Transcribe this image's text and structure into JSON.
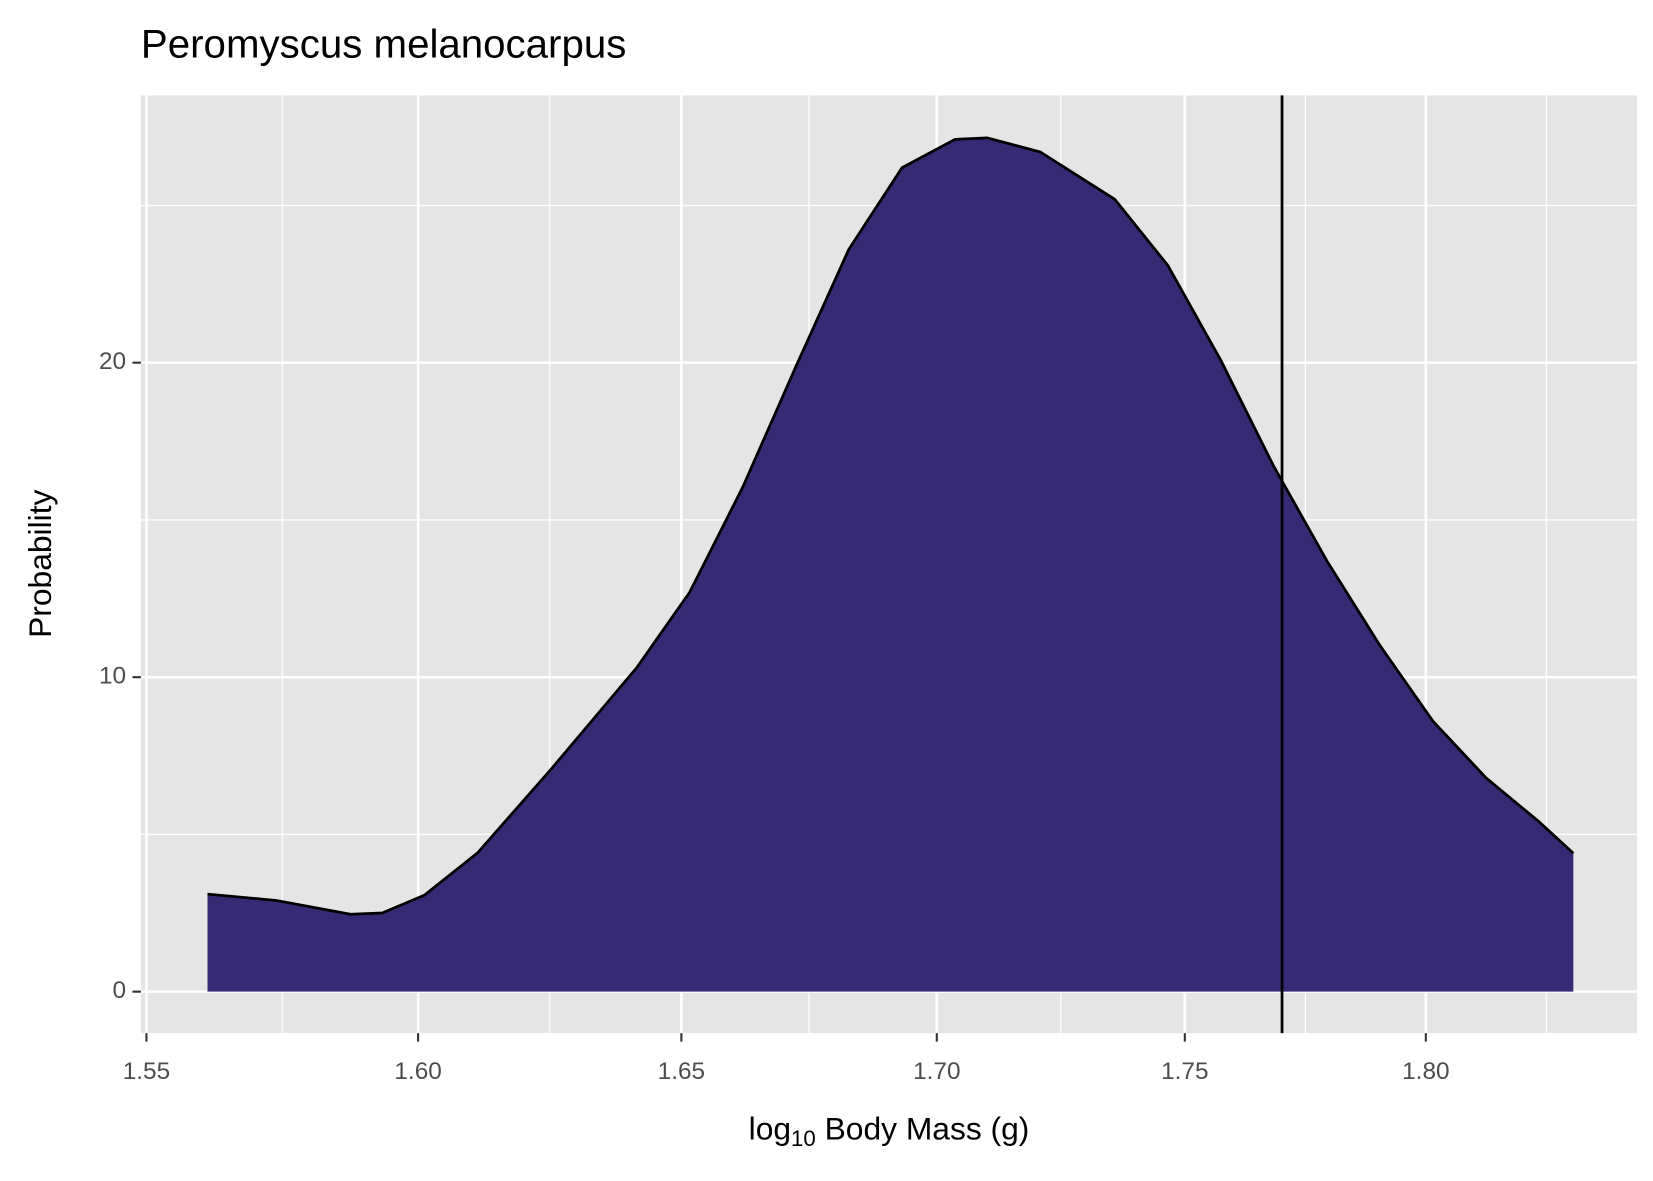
{
  "chart_data": {
    "type": "density",
    "title": "Peromyscus melanocarpus",
    "x_label": [
      "log",
      "10",
      " Body Mass (g)"
    ],
    "y_label": "Probability",
    "x": [
      1.5611,
      1.5737,
      1.5874,
      1.5933,
      1.6012,
      1.6112,
      1.6252,
      1.6414,
      1.6516,
      1.6619,
      1.6723,
      1.6826,
      1.6931,
      1.7036,
      1.71,
      1.7207,
      1.7357,
      1.7465,
      1.7573,
      1.7683,
      1.7793,
      1.7904,
      1.8015,
      1.8127,
      1.824,
      1.8313
    ],
    "values": [
      3.1,
      2.9,
      2.46,
      2.5,
      3.07,
      4.42,
      7.1,
      10.3,
      12.7,
      16.05,
      19.9,
      23.6,
      26.2,
      27.1,
      27.15,
      26.7,
      25.2,
      23.1,
      20.1,
      16.7,
      13.7,
      11.0,
      8.6,
      6.8,
      5.4,
      4.4
    ],
    "color": "#372a75",
    "reference_x": 1.77,
    "xlim": [
      1.549,
      1.845
    ],
    "xticks": [
      1.55,
      {
        "value": 1.6,
        "label": "1.60"
      },
      1.65,
      {
        "value": 1.7,
        "label": "1.70"
      },
      1.75,
      {
        "value": 1.8,
        "label": "1.80"
      }
    ],
    "x_log": true,
    "ylim": [
      -1.32,
      28.5
    ],
    "yticks": [
      0,
      10,
      20
    ],
    "grid": true
  }
}
